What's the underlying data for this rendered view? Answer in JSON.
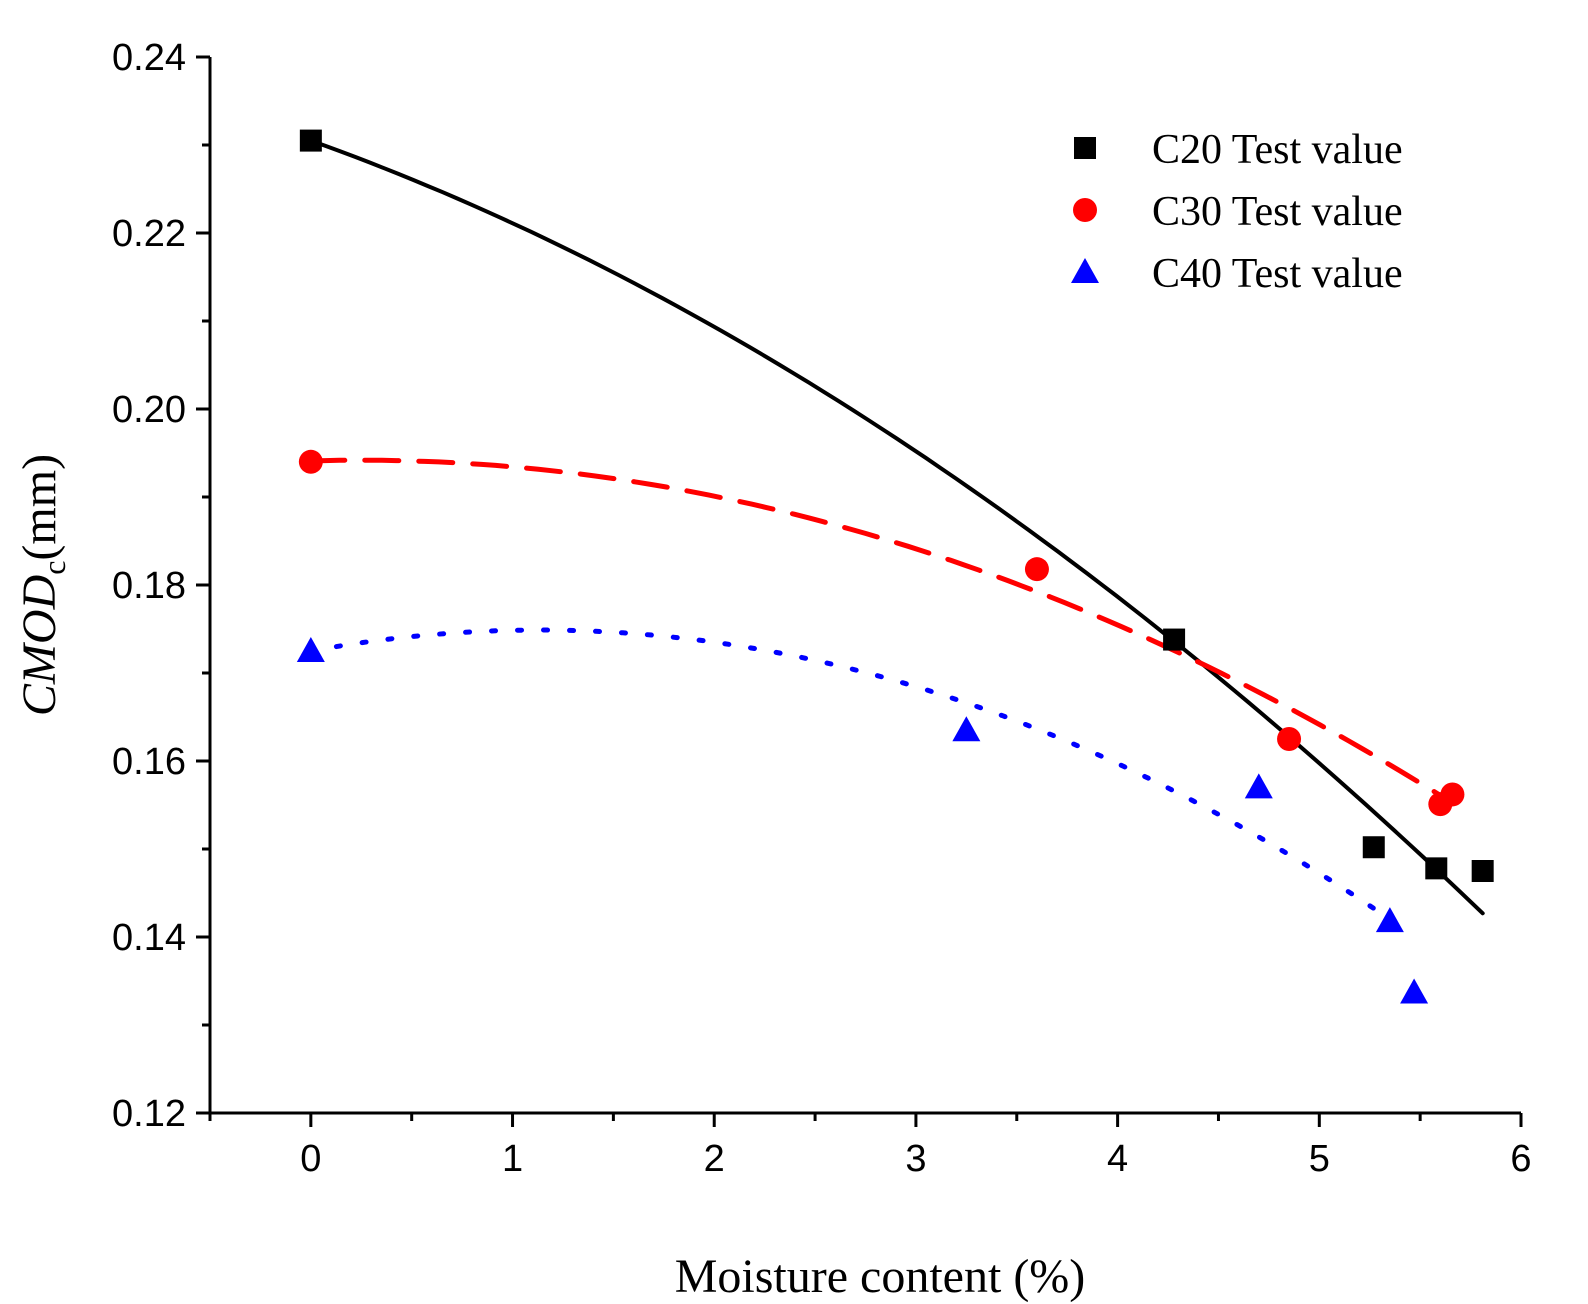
{
  "chart_data": {
    "type": "scatter",
    "title": "",
    "xlabel": "Moisture content (%)",
    "ylabel_main": "CMOD",
    "ylabel_sub": "c",
    "ylabel_unit": "(mm)",
    "xlim": [
      -0.5,
      6
    ],
    "ylim": [
      0.12,
      0.24
    ],
    "x_ticks": [
      0,
      1,
      2,
      3,
      4,
      5,
      6
    ],
    "x_tick_labels": [
      "0",
      "1",
      "2",
      "3",
      "4",
      "5",
      "6"
    ],
    "y_ticks": [
      0.12,
      0.14,
      0.16,
      0.18,
      0.2,
      0.22,
      0.24
    ],
    "y_tick_labels": [
      "0.12",
      "0.14",
      "0.16",
      "0.18",
      "0.20",
      "0.22",
      "0.24"
    ],
    "grid": false,
    "legend_position": "top-right",
    "series": [
      {
        "name": "C20 Test value",
        "marker": "square",
        "color": "#000000",
        "x": [
          0,
          4.28,
          5.27,
          5.58,
          5.81
        ],
        "y": [
          0.2305,
          0.1738,
          0.1502,
          0.1478,
          0.1475
        ],
        "fit": {
          "style": "solid",
          "x_range": [
            0,
            5.81
          ],
          "coefficients": [
            0.2305,
            -0.0082,
            -0.00119
          ]
        }
      },
      {
        "name": "C30 Test value",
        "marker": "circle",
        "color": "#ff0000",
        "x": [
          0,
          3.6,
          4.85,
          5.6,
          5.66
        ],
        "y": [
          0.194,
          0.1818,
          0.1625,
          0.1551,
          0.1562
        ],
        "fit": {
          "style": "dashed",
          "x_range": [
            0,
            5.64
          ],
          "coefficients": [
            0.1941,
            0.00066,
            -0.00133
          ]
        }
      },
      {
        "name": "C40 Test value",
        "marker": "triangle",
        "color": "#0000ff",
        "x": [
          0,
          3.25,
          4.7,
          5.35,
          5.47
        ],
        "y": [
          0.1725,
          0.1635,
          0.157,
          0.1418,
          0.1337
        ],
        "fit": {
          "style": "dotted",
          "x_range": [
            0,
            5.38
          ],
          "coefficients": [
            0.1725,
            0.0042,
            -0.00185
          ]
        }
      }
    ]
  }
}
